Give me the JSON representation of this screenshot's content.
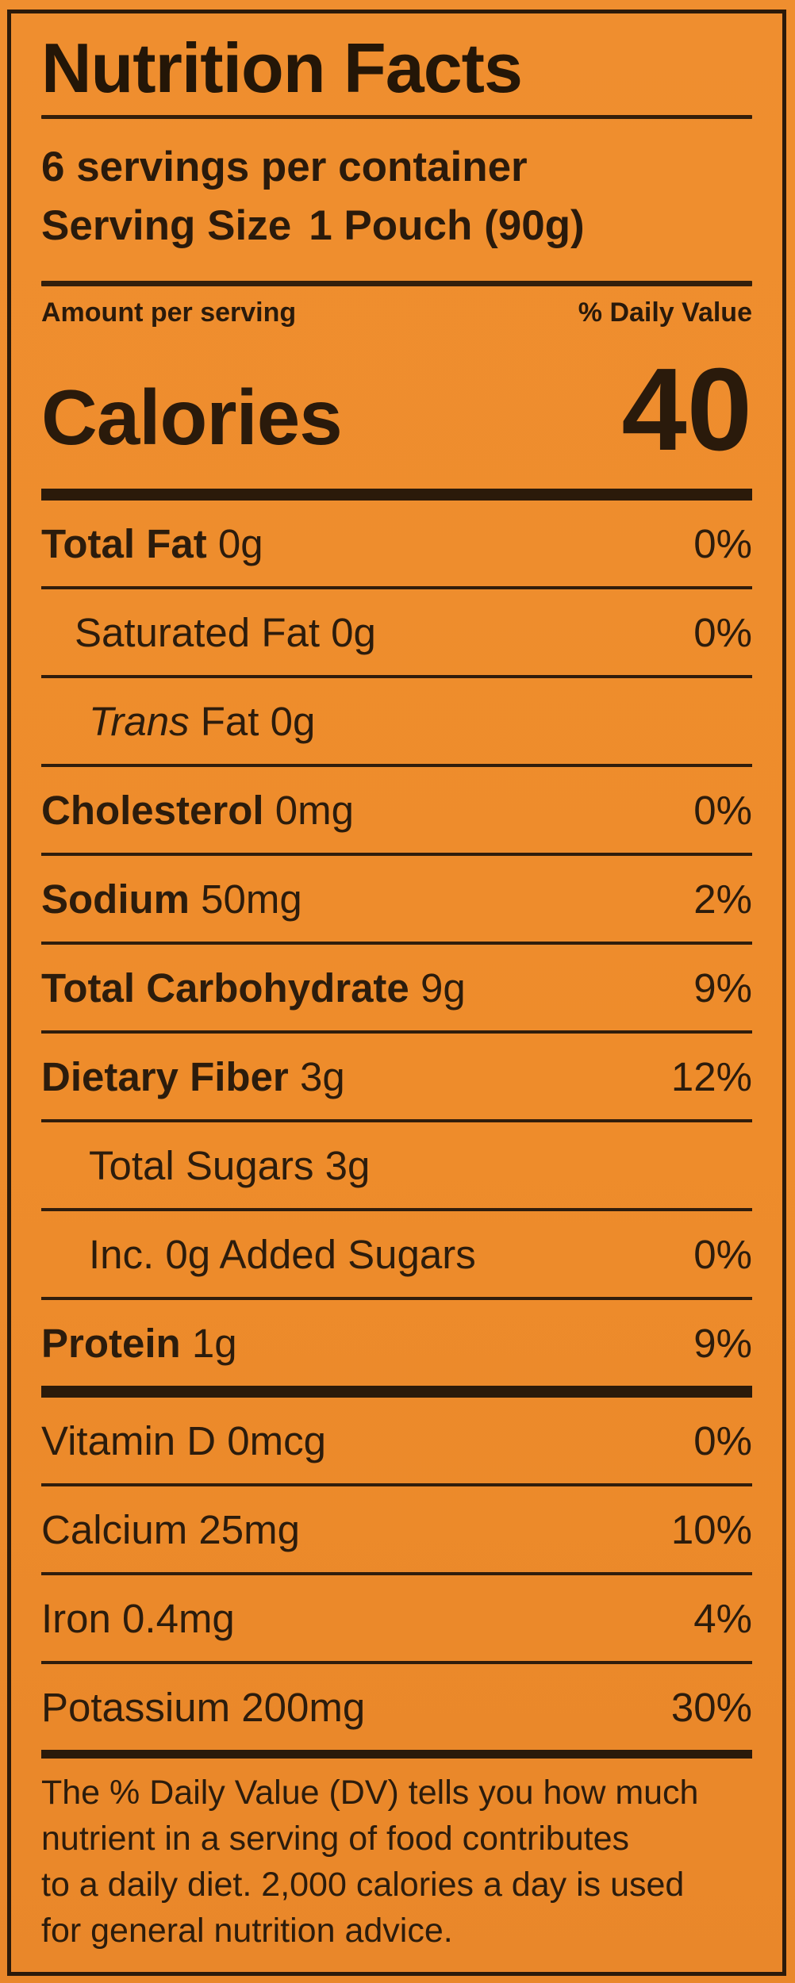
{
  "colors": {
    "background_orange": "#ee8c2b",
    "ink": "#2a1a0b"
  },
  "label": {
    "title": "Nutrition Facts",
    "servings_per_container": "6 servings per container",
    "serving_size_label": "Serving Size",
    "serving_size_value": "1 Pouch (90g)",
    "amount_per_serving": "Amount per serving",
    "daily_value_header": "% Daily Value",
    "calories_label": "Calories",
    "calories_value": "40",
    "nutrients": [
      {
        "strong": "Total Fat",
        "rest": " 0g",
        "dv": "0%"
      },
      {
        "strong": "",
        "rest": "Saturated Fat 0g",
        "dv": "0%"
      },
      {
        "italic": "Trans",
        "rest": " Fat 0g",
        "dv": ""
      },
      {
        "strong": "Cholesterol",
        "rest": " 0mg",
        "dv": "0%"
      },
      {
        "strong": "Sodium",
        "rest": " 50mg",
        "dv": "2%"
      },
      {
        "strong": "Total Carbohydrate",
        "rest": " 9g",
        "dv": "9%"
      },
      {
        "strong": "Dietary Fiber",
        "rest": " 3g",
        "dv": "12%"
      },
      {
        "strong": "",
        "rest": "Total Sugars 3g",
        "dv": ""
      },
      {
        "strong": "",
        "rest": "Inc. 0g Added Sugars",
        "dv": "0%"
      },
      {
        "strong": "Protein",
        "rest": " 1g",
        "dv": "9%"
      }
    ],
    "micronutrients": [
      {
        "rest": "Vitamin D 0mcg",
        "dv": "0%"
      },
      {
        "rest": "Calcium 25mg",
        "dv": "10%"
      },
      {
        "rest": "Iron 0.4mg",
        "dv": "4%"
      },
      {
        "rest": "Potassium 200mg",
        "dv": "30%"
      }
    ],
    "footnote_lines": [
      "The % Daily Value (DV) tells you how much",
      "nutrient in a serving of food contributes",
      "to a daily diet. 2,000 calories a day is used",
      "for general nutrition advice."
    ]
  }
}
